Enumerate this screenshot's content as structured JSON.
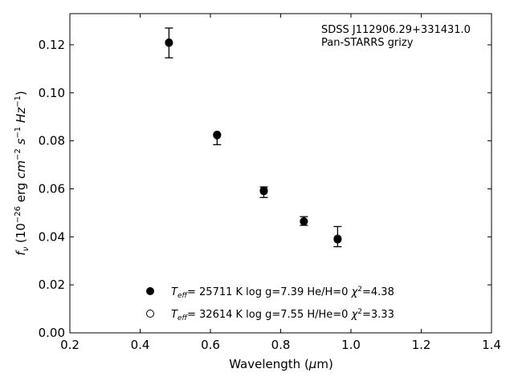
{
  "chart_data": {
    "type": "scatter",
    "annotation_lines": [
      "SDSS J112906.29+331431.0",
      "Pan-STARRS grizy"
    ],
    "xlabel": {
      "pre": "Wavelength (",
      "mu": "μ",
      "post": "m)"
    },
    "ylabel": {
      "f": "f",
      "nu": "ν",
      "p1": " (10",
      "e1": "−26",
      "p2": " erg ",
      "cm": "cm",
      "e2": "−2",
      "s": " s",
      "e3": "−1",
      "hz": " Hz",
      "e4": "−1",
      "p3": ")"
    },
    "xlim": [
      0.2,
      1.4
    ],
    "ylim": [
      0.0,
      0.133
    ],
    "xticks": [
      0.2,
      0.4,
      0.6,
      0.8,
      1.0,
      1.2,
      1.4
    ],
    "xtick_labels": [
      "0.2",
      "0.4",
      "0.6",
      "0.8",
      "1.0",
      "1.2",
      "1.4"
    ],
    "yticks": [
      0.0,
      0.02,
      0.04,
      0.06,
      0.08,
      0.1,
      0.12
    ],
    "ytick_labels": [
      "0.00",
      "0.02",
      "0.04",
      "0.06",
      "0.08",
      "0.10",
      "0.12"
    ],
    "observed": {
      "x": [
        0.482,
        0.619,
        0.752,
        0.866,
        0.962
      ],
      "y": [
        0.1208,
        0.0805,
        0.0586,
        0.0466,
        0.0401
      ],
      "yerr": [
        0.0062,
        0.0021,
        0.0022,
        0.0018,
        0.0042
      ]
    },
    "series": [
      {
        "marker": "filled-circle",
        "label": {
          "T": "T",
          "eff": "eff",
          "rest": "= 25711 K  log g=7.39  He/H=0  ",
          "chi": "χ",
          "sq": "2",
          "val": "=4.38"
        },
        "x": [
          0.482,
          0.619,
          0.752,
          0.866,
          0.962
        ],
        "y": [
          0.121,
          0.0823,
          0.059,
          0.0464,
          0.0389
        ]
      },
      {
        "marker": "open-circle",
        "label": {
          "T": "T",
          "eff": "eff",
          "rest": "= 32614 K  log g=7.55  H/He=0  ",
          "chi": "χ",
          "sq": "2",
          "val": "=3.33"
        },
        "x": [
          0.482,
          0.619,
          0.752,
          0.866,
          0.962
        ],
        "y": [
          0.1208,
          0.0826,
          0.0594,
          0.0465,
          0.0393
        ]
      }
    ],
    "legend_position": "lower-center",
    "grid": false
  }
}
